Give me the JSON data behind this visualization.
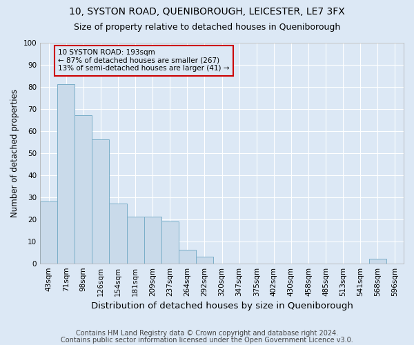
{
  "title": "10, SYSTON ROAD, QUENIBOROUGH, LEICESTER, LE7 3FX",
  "subtitle": "Size of property relative to detached houses in Queniborough",
  "xlabel": "Distribution of detached houses by size in Queniborough",
  "ylabel": "Number of detached properties",
  "categories": [
    "43sqm",
    "71sqm",
    "98sqm",
    "126sqm",
    "154sqm",
    "181sqm",
    "209sqm",
    "237sqm",
    "264sqm",
    "292sqm",
    "320sqm",
    "347sqm",
    "375sqm",
    "402sqm",
    "430sqm",
    "458sqm",
    "485sqm",
    "513sqm",
    "541sqm",
    "568sqm",
    "596sqm"
  ],
  "values": [
    28,
    81,
    67,
    56,
    27,
    21,
    21,
    19,
    6,
    3,
    0,
    0,
    0,
    0,
    0,
    0,
    0,
    0,
    0,
    2,
    0
  ],
  "bar_color": "#c9daea",
  "bar_edge_color": "#7aaec8",
  "annotation_text": "10 SYSTON ROAD: 193sqm\n← 87% of detached houses are smaller (267)\n13% of semi-detached houses are larger (41) →",
  "annotation_color": "#cc0000",
  "footer_line1": "Contains HM Land Registry data © Crown copyright and database right 2024.",
  "footer_line2": "Contains public sector information licensed under the Open Government Licence v3.0.",
  "background_color": "#dce8f5",
  "plot_background_color": "#dce8f5",
  "ylim": [
    0,
    100
  ],
  "yticks": [
    0,
    10,
    20,
    30,
    40,
    50,
    60,
    70,
    80,
    90,
    100
  ],
  "title_fontsize": 10,
  "subtitle_fontsize": 9,
  "xlabel_fontsize": 9.5,
  "ylabel_fontsize": 8.5,
  "tick_fontsize": 7.5,
  "annotation_fontsize": 7.5,
  "footer_fontsize": 7
}
